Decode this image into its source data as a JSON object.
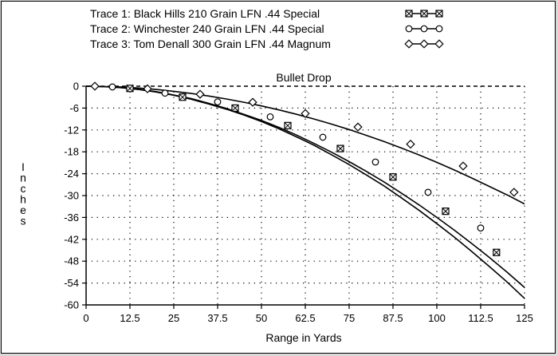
{
  "chart_data": {
    "type": "line",
    "title": "Bullet Drop",
    "xlabel": "Range in Yards",
    "ylabel": "Inches",
    "xlim": [
      0,
      125
    ],
    "ylim": [
      -60,
      0
    ],
    "xticks": [
      0,
      12.5,
      25,
      37.5,
      50,
      62.5,
      75,
      87.5,
      100,
      112.5,
      125
    ],
    "xtick_labels": [
      "0",
      "12.5",
      "25",
      "37.5",
      "50",
      "62.5",
      "75",
      "87.5",
      "100",
      "112.5",
      "125"
    ],
    "yticks": [
      0,
      -6,
      -12,
      -18,
      -24,
      -30,
      -36,
      -42,
      -48,
      -54,
      -60
    ],
    "ytick_labels": [
      "0",
      "-6",
      "-12",
      "-18",
      "-24",
      "-30",
      "-36",
      "-42",
      "-48",
      "-54",
      "-60"
    ],
    "grid": "dotted",
    "legend_position": "top",
    "series": [
      {
        "name": "Trace 1:  Black Hills 210 Grain LFN .44 Special",
        "marker": "square-x",
        "color": "#000000",
        "line_x": [
          0,
          5,
          10,
          15,
          20,
          25,
          30,
          35,
          40,
          45,
          50,
          55,
          60,
          65,
          70,
          75,
          80,
          85,
          90,
          95,
          100,
          105,
          110,
          115,
          120,
          125
        ],
        "line_y": [
          0,
          -0.1,
          -0.4,
          -0.9,
          -1.6,
          -2.5,
          -3.6,
          -4.9,
          -6.3,
          -7.9,
          -9.7,
          -11.7,
          -13.9,
          -16.2,
          -18.8,
          -21.5,
          -24.4,
          -27.4,
          -30.7,
          -34.1,
          -37.7,
          -41.4,
          -45.4,
          -49.5,
          -53.7,
          -58.2
        ],
        "marker_x": [
          12.5,
          27.5,
          42.5,
          57.5,
          72.5,
          87.5,
          102.5,
          117
        ],
        "marker_y": [
          -0.6,
          -3.0,
          -6.0,
          -10.8,
          -17.1,
          -24.9,
          -34.3,
          -45.6
        ]
      },
      {
        "name": "Trace 2:  Winchester 240 Grain LFN .44 Special",
        "marker": "circle",
        "color": "#000000",
        "line_x": [
          0,
          5,
          10,
          15,
          20,
          25,
          30,
          35,
          40,
          45,
          50,
          55,
          60,
          65,
          70,
          75,
          80,
          85,
          90,
          95,
          100,
          105,
          110,
          115,
          120,
          125
        ],
        "line_y": [
          0,
          -0.1,
          -0.4,
          -0.9,
          -1.5,
          -2.4,
          -3.4,
          -4.7,
          -6.1,
          -7.7,
          -9.4,
          -11.3,
          -13.4,
          -15.7,
          -18.1,
          -20.7,
          -23.4,
          -26.3,
          -29.4,
          -32.6,
          -36.0,
          -39.5,
          -43.2,
          -47.0,
          -51.0,
          -55.2
        ],
        "marker_x": [
          7.5,
          22.5,
          37.5,
          52.5,
          67.5,
          82.5,
          97.5,
          112.5
        ],
        "marker_y": [
          -0.2,
          -1.9,
          -4.3,
          -8.4,
          -14.0,
          -20.8,
          -29.1,
          -38.9
        ]
      },
      {
        "name": "Trace 3:  Tom Denall 300 Grain LFN .44 Magnum",
        "marker": "diamond",
        "color": "#000000",
        "line_x": [
          0,
          5,
          10,
          15,
          20,
          25,
          30,
          35,
          40,
          45,
          50,
          55,
          60,
          65,
          70,
          75,
          80,
          85,
          90,
          95,
          100,
          105,
          110,
          115,
          120,
          125
        ],
        "line_y": [
          0,
          -0.1,
          -0.2,
          -0.5,
          -0.9,
          -1.4,
          -2.0,
          -2.7,
          -3.5,
          -4.4,
          -5.4,
          -6.5,
          -7.7,
          -9.0,
          -10.4,
          -11.9,
          -13.5,
          -15.2,
          -17.0,
          -18.9,
          -20.9,
          -23.0,
          -25.2,
          -27.5,
          -29.8,
          -32.3
        ],
        "marker_x": [
          2.5,
          17.5,
          32.5,
          47.5,
          62.5,
          77.5,
          92.5,
          107.5,
          122
        ],
        "marker_y": [
          0.0,
          -0.7,
          -2.2,
          -4.4,
          -7.5,
          -11.2,
          -15.9,
          -21.9,
          -29.1
        ]
      }
    ]
  }
}
